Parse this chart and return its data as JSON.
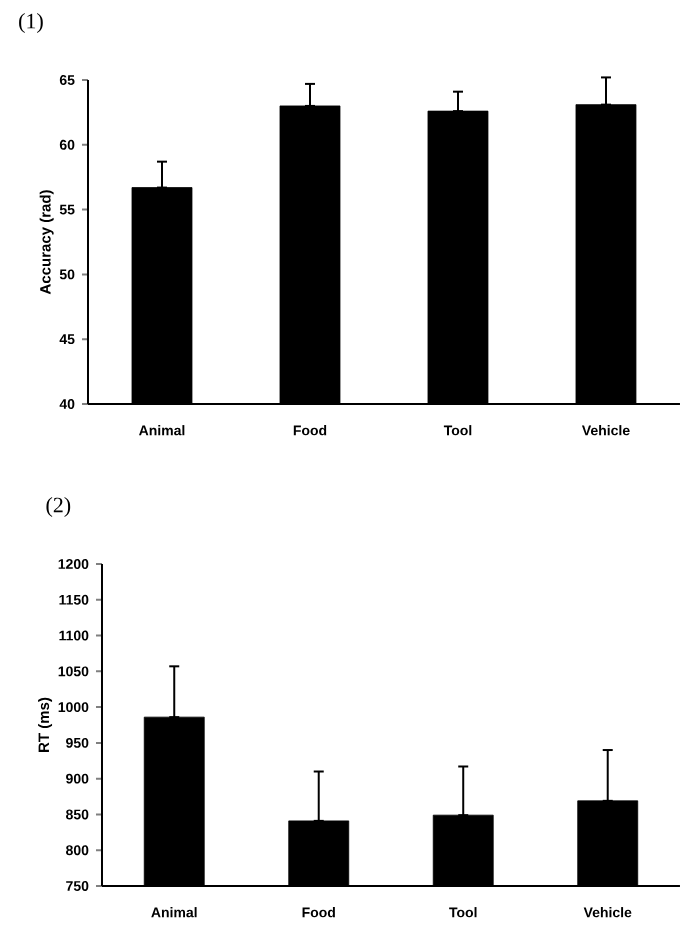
{
  "chart_data": [
    {
      "type": "bar",
      "title": "(1)",
      "ylabel": "Accuracy (rad)",
      "categories": [
        "Animal",
        "Food",
        "Tool",
        "Vehicle"
      ],
      "values": [
        56.7,
        63.0,
        62.6,
        63.1
      ],
      "errors": [
        [
          56.7,
          58.7
        ],
        [
          63.0,
          64.7
        ],
        [
          62.6,
          64.1
        ],
        [
          63.1,
          65.2
        ]
      ],
      "color": "#000000",
      "ylim": [
        40,
        65
      ],
      "yticks": [
        40,
        45,
        50,
        55,
        60,
        65
      ]
    },
    {
      "type": "bar",
      "title": "(2)",
      "ylabel": "RT (ms)",
      "categories": [
        "Animal",
        "Food",
        "Tool",
        "Vehicle"
      ],
      "values": [
        986,
        841,
        849,
        869
      ],
      "errors": [
        [
          986,
          1057
        ],
        [
          841,
          910
        ],
        [
          849,
          917
        ],
        [
          869,
          940
        ]
      ],
      "color": "#000000",
      "ylim": [
        750,
        1200
      ],
      "yticks": [
        750,
        800,
        850,
        900,
        950,
        1000,
        1050,
        1100,
        1150,
        1200
      ]
    }
  ]
}
